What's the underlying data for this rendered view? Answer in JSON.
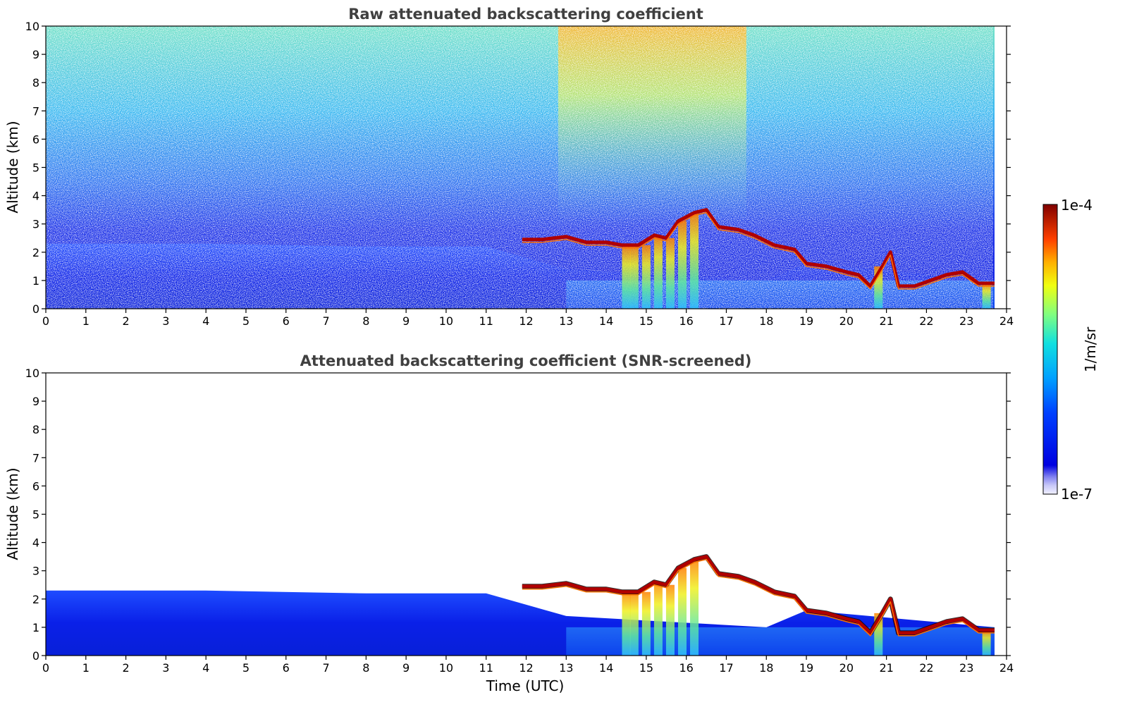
{
  "chart_data": [
    {
      "type": "heatmap",
      "title": "Raw attenuated backscattering coefficient",
      "xlabel": "",
      "ylabel": "Altitude (km)",
      "xlim": [
        0,
        24
      ],
      "ylim": [
        0,
        10
      ],
      "x_ticks": [
        "0",
        "1",
        "2",
        "3",
        "4",
        "5",
        "6",
        "7",
        "8",
        "9",
        "10",
        "11",
        "12",
        "13",
        "14",
        "15",
        "16",
        "17",
        "18",
        "19",
        "20",
        "21",
        "22",
        "23",
        "24"
      ],
      "y_ticks": [
        "0",
        "1",
        "2",
        "3",
        "4",
        "5",
        "6",
        "7",
        "8",
        "9",
        "10"
      ],
      "data_end_time": 23.7,
      "noise_visible": true,
      "cloud_base_km": [
        {
          "t": 11.9,
          "alt": 2.45
        },
        {
          "t": 12.4,
          "alt": 2.45
        },
        {
          "t": 13.0,
          "alt": 2.55
        },
        {
          "t": 13.5,
          "alt": 2.35
        },
        {
          "t": 14.0,
          "alt": 2.35
        },
        {
          "t": 14.4,
          "alt": 2.25
        },
        {
          "t": 14.8,
          "alt": 2.25
        },
        {
          "t": 15.2,
          "alt": 2.6
        },
        {
          "t": 15.5,
          "alt": 2.5
        },
        {
          "t": 15.8,
          "alt": 3.1
        },
        {
          "t": 16.2,
          "alt": 3.4
        },
        {
          "t": 16.5,
          "alt": 3.5
        },
        {
          "t": 16.8,
          "alt": 2.9
        },
        {
          "t": 17.3,
          "alt": 2.8
        },
        {
          "t": 17.7,
          "alt": 2.6
        },
        {
          "t": 18.2,
          "alt": 2.25
        },
        {
          "t": 18.7,
          "alt": 2.1
        },
        {
          "t": 19.0,
          "alt": 1.6
        },
        {
          "t": 19.5,
          "alt": 1.5
        },
        {
          "t": 20.0,
          "alt": 1.3
        },
        {
          "t": 20.3,
          "alt": 1.2
        },
        {
          "t": 20.6,
          "alt": 0.8
        },
        {
          "t": 20.9,
          "alt": 1.5
        },
        {
          "t": 21.1,
          "alt": 2.0
        },
        {
          "t": 21.3,
          "alt": 0.8
        },
        {
          "t": 21.7,
          "alt": 0.8
        },
        {
          "t": 22.1,
          "alt": 1.0
        },
        {
          "t": 22.5,
          "alt": 1.2
        },
        {
          "t": 22.9,
          "alt": 1.3
        },
        {
          "t": 23.3,
          "alt": 0.9
        },
        {
          "t": 23.7,
          "alt": 0.9
        }
      ],
      "boundary_layer_top_km": [
        {
          "t": 0,
          "alt": 2.3
        },
        {
          "t": 4,
          "alt": 2.3
        },
        {
          "t": 8,
          "alt": 2.2
        },
        {
          "t": 11,
          "alt": 2.2
        },
        {
          "t": 13,
          "alt": 1.4
        },
        {
          "t": 18,
          "alt": 1.0
        },
        {
          "t": 19,
          "alt": 1.6
        },
        {
          "t": 23.7,
          "alt": 1.0
        }
      ],
      "precipitation_streaks_time": [
        14.5,
        14.7,
        15.0,
        15.3,
        15.6,
        15.9,
        16.2,
        20.8,
        23.5
      ]
    },
    {
      "type": "heatmap",
      "title": "Attenuated backscattering coefficient (SNR-screened)",
      "xlabel": "Time (UTC)",
      "ylabel": "Altitude (km)",
      "xlim": [
        0,
        24
      ],
      "ylim": [
        0,
        10
      ],
      "x_ticks": [
        "0",
        "1",
        "2",
        "3",
        "4",
        "5",
        "6",
        "7",
        "8",
        "9",
        "10",
        "11",
        "12",
        "13",
        "14",
        "15",
        "16",
        "17",
        "18",
        "19",
        "20",
        "21",
        "22",
        "23",
        "24"
      ],
      "y_ticks": [
        "0",
        "1",
        "2",
        "3",
        "4",
        "5",
        "6",
        "7",
        "8",
        "9",
        "10"
      ],
      "data_end_time": 23.7,
      "noise_visible": false
    }
  ],
  "colorbar": {
    "label": "1/m/sr",
    "max_label": "1e-4",
    "min_label": "1e-7",
    "scale": "log",
    "range": [
      1e-07,
      0.0001
    ],
    "colormap": "jet"
  }
}
